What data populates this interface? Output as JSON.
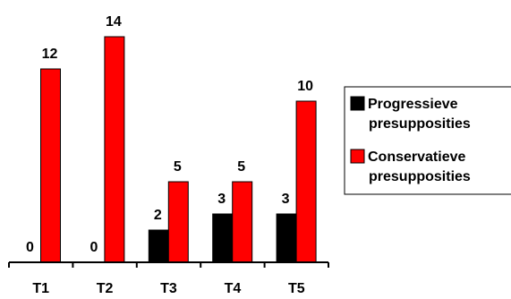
{
  "chart_data": {
    "type": "bar",
    "categories": [
      "T1",
      "T2",
      "T3",
      "T4",
      "T5"
    ],
    "series": [
      {
        "name": "Progressieve presupposities",
        "legend_lines": [
          "Progressieve",
          "presupposities"
        ],
        "color": "#000000",
        "values": [
          0,
          0,
          2,
          3,
          3
        ]
      },
      {
        "name": "Conservatieve presupposities",
        "legend_lines": [
          "Conservatieve",
          "presupposities"
        ],
        "color": "#ff0000",
        "values": [
          12,
          14,
          5,
          5,
          10
        ]
      }
    ],
    "data_labels": true,
    "ylim": [
      0,
      14
    ],
    "grid": false,
    "legend_position": "right",
    "title": "",
    "xlabel": "",
    "ylabel": ""
  }
}
